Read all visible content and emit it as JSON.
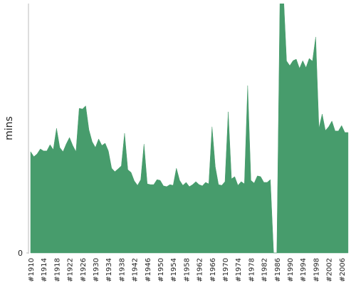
{
  "chart_data": {
    "type": "area",
    "y_label": "mins",
    "color": "#479c6c",
    "categories": [
      "#1910",
      null,
      null,
      null,
      "#1914",
      null,
      null,
      null,
      "#1918",
      null,
      null,
      null,
      "#1922",
      null,
      null,
      null,
      "#1926",
      null,
      null,
      null,
      "#1930",
      null,
      null,
      null,
      "#1934",
      null,
      null,
      null,
      "#1938",
      null,
      null,
      null,
      "#1942",
      null,
      null,
      null,
      "#1946",
      null,
      null,
      null,
      "#1950",
      null,
      null,
      null,
      "#1954",
      null,
      null,
      null,
      "#1958",
      null,
      null,
      null,
      "#1962",
      null,
      null,
      null,
      "#1966",
      null,
      null,
      null,
      "#1970",
      null,
      null,
      null,
      "#1974",
      null,
      null,
      null,
      "#1978",
      null,
      null,
      null,
      "#1982",
      null,
      null,
      null,
      "#1986",
      null,
      null,
      null,
      "#1990",
      null,
      null,
      null,
      "#1994",
      null,
      null,
      null,
      "#1998",
      null,
      null,
      null,
      "#2002",
      null,
      null,
      null,
      "#2006",
      null,
      null
    ],
    "values": [
      40.6,
      38.6,
      39.7,
      41.7,
      40.9,
      40.9,
      43.4,
      41.4,
      50,
      42.3,
      40.6,
      43.7,
      46.3,
      43.1,
      40.6,
      58,
      57.7,
      59,
      49.4,
      44.6,
      42.3,
      45.7,
      43.1,
      44,
      40.9,
      34,
      32.6,
      33.7,
      34.9,
      48,
      33.4,
      32.3,
      28.9,
      27.1,
      29.4,
      43.7,
      27.7,
      27.4,
      27.4,
      29.4,
      29.1,
      26.9,
      26.6,
      27.4,
      27.1,
      34,
      29.1,
      27.1,
      28.3,
      26.6,
      27.4,
      28.6,
      27.4,
      26.9,
      28.3,
      27.7,
      50.6,
      34.6,
      27.4,
      27.1,
      28.6,
      56.6,
      29.7,
      30.6,
      27.1,
      28.6,
      27.7,
      67.1,
      29.1,
      28,
      30.9,
      30.6,
      28.3,
      28.3,
      29.4,
      0,
      0,
      105,
      105,
      77,
      75.1,
      77.1,
      77.7,
      74,
      77.1,
      74.3,
      78,
      76.9,
      86.6,
      50,
      55.7,
      49.1,
      50.6,
      52.9,
      48.9,
      48.9,
      51.1,
      48.3,
      48.3
    ],
    "ylim": [
      0,
      100
    ],
    "yticks": [
      0
    ]
  }
}
